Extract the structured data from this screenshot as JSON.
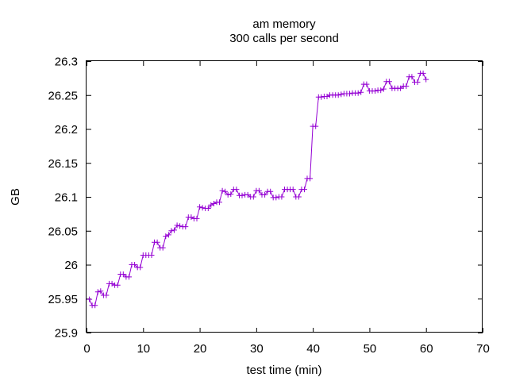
{
  "chart_data": {
    "type": "line",
    "title": "am memory",
    "subtitle": "300 calls per second",
    "xlabel": "test time (min)",
    "ylabel": "GB",
    "xlim": [
      0,
      70
    ],
    "ylim": [
      25.9,
      26.3
    ],
    "x_ticks": [
      "0",
      "10",
      "20",
      "30",
      "40",
      "50",
      "60",
      "70"
    ],
    "y_ticks": [
      "25.9",
      "25.95",
      "26",
      "26.05",
      "26.1",
      "26.15",
      "26.2",
      "26.25",
      "26.3"
    ],
    "grid": false,
    "legend": "none",
    "marker": "plus",
    "series": [
      {
        "color": "#9400d3",
        "points": [
          [
            0.5,
            25.949
          ],
          [
            1.0,
            25.94
          ],
          [
            1.5,
            25.94
          ],
          [
            2.0,
            25.96
          ],
          [
            2.5,
            25.961
          ],
          [
            3.0,
            25.955
          ],
          [
            3.5,
            25.955
          ],
          [
            4.0,
            25.972
          ],
          [
            4.5,
            25.972
          ],
          [
            5.0,
            25.97
          ],
          [
            5.5,
            25.97
          ],
          [
            6.0,
            25.986
          ],
          [
            6.5,
            25.986
          ],
          [
            7.0,
            25.982
          ],
          [
            7.5,
            25.982
          ],
          [
            8.0,
            26.0
          ],
          [
            8.5,
            26.0
          ],
          [
            9.0,
            25.996
          ],
          [
            9.5,
            25.996
          ],
          [
            10.0,
            26.014
          ],
          [
            10.5,
            26.014
          ],
          [
            11.0,
            26.014
          ],
          [
            11.5,
            26.014
          ],
          [
            12.0,
            26.033
          ],
          [
            12.5,
            26.033
          ],
          [
            13.0,
            26.025
          ],
          [
            13.5,
            26.025
          ],
          [
            14.0,
            26.042
          ],
          [
            14.5,
            26.044
          ],
          [
            15.0,
            26.05
          ],
          [
            15.5,
            26.051
          ],
          [
            16.0,
            26.058
          ],
          [
            16.5,
            26.057
          ],
          [
            17.0,
            26.056
          ],
          [
            17.5,
            26.056
          ],
          [
            18.0,
            26.07
          ],
          [
            18.5,
            26.07
          ],
          [
            19.0,
            26.068
          ],
          [
            19.5,
            26.068
          ],
          [
            20.0,
            26.085
          ],
          [
            20.5,
            26.084
          ],
          [
            21.0,
            26.083
          ],
          [
            21.5,
            26.083
          ],
          [
            22.0,
            26.088
          ],
          [
            22.5,
            26.09
          ],
          [
            23.0,
            26.092
          ],
          [
            23.5,
            26.092
          ],
          [
            24.0,
            26.109
          ],
          [
            24.5,
            26.108
          ],
          [
            25.0,
            26.103
          ],
          [
            25.5,
            26.104
          ],
          [
            26.0,
            26.111
          ],
          [
            26.5,
            26.111
          ],
          [
            27.0,
            26.102
          ],
          [
            27.5,
            26.102
          ],
          [
            28.0,
            26.103
          ],
          [
            28.5,
            26.103
          ],
          [
            29.0,
            26.1
          ],
          [
            29.5,
            26.1
          ],
          [
            30.0,
            26.109
          ],
          [
            30.5,
            26.109
          ],
          [
            31.0,
            26.103
          ],
          [
            31.5,
            26.103
          ],
          [
            32.0,
            26.108
          ],
          [
            32.5,
            26.108
          ],
          [
            33.0,
            26.099
          ],
          [
            33.5,
            26.099
          ],
          [
            34.0,
            26.1
          ],
          [
            34.5,
            26.1
          ],
          [
            35.0,
            26.111
          ],
          [
            35.5,
            26.111
          ],
          [
            36.0,
            26.111
          ],
          [
            36.5,
            26.111
          ],
          [
            37.0,
            26.1
          ],
          [
            37.5,
            26.1
          ],
          [
            38.0,
            26.111
          ],
          [
            38.5,
            26.111
          ],
          [
            39.0,
            26.127
          ],
          [
            39.5,
            26.127
          ],
          [
            40.0,
            26.204
          ],
          [
            40.5,
            26.204
          ],
          [
            41.0,
            26.247
          ],
          [
            41.5,
            26.247
          ],
          [
            42.0,
            26.248
          ],
          [
            42.5,
            26.248
          ],
          [
            43.0,
            26.25
          ],
          [
            43.5,
            26.25
          ],
          [
            44.0,
            26.25
          ],
          [
            44.5,
            26.25
          ],
          [
            45.0,
            26.251
          ],
          [
            45.5,
            26.252
          ],
          [
            46.0,
            26.252
          ],
          [
            46.5,
            26.252
          ],
          [
            47.0,
            26.253
          ],
          [
            47.5,
            26.253
          ],
          [
            48.0,
            26.253
          ],
          [
            48.5,
            26.254
          ],
          [
            49.0,
            26.266
          ],
          [
            49.5,
            26.266
          ],
          [
            50.0,
            26.256
          ],
          [
            50.5,
            26.256
          ],
          [
            51.0,
            26.256
          ],
          [
            51.5,
            26.257
          ],
          [
            52.0,
            26.257
          ],
          [
            52.5,
            26.259
          ],
          [
            53.0,
            26.27
          ],
          [
            53.5,
            26.27
          ],
          [
            54.0,
            26.26
          ],
          [
            54.5,
            26.26
          ],
          [
            55.0,
            26.26
          ],
          [
            55.5,
            26.26
          ],
          [
            56.0,
            26.263
          ],
          [
            56.5,
            26.263
          ],
          [
            57.0,
            26.277
          ],
          [
            57.5,
            26.277
          ],
          [
            58.0,
            26.269
          ],
          [
            58.5,
            26.269
          ],
          [
            59.0,
            26.282
          ],
          [
            59.5,
            26.282
          ],
          [
            60.0,
            26.273
          ]
        ]
      }
    ]
  }
}
